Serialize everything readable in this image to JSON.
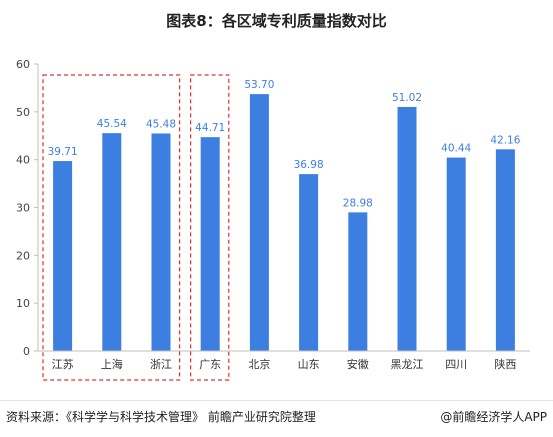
{
  "chart_data": {
    "type": "bar",
    "title": "图表8：各区域专利质量指数对比",
    "categories": [
      "江苏",
      "上海",
      "浙江",
      "广东",
      "北京",
      "山东",
      "安徽",
      "黑龙江",
      "四川",
      "陕西"
    ],
    "values": [
      39.71,
      45.54,
      45.48,
      44.71,
      53.7,
      36.98,
      28.98,
      51.02,
      40.44,
      42.16
    ],
    "value_labels": [
      "39.71",
      "45.54",
      "45.48",
      "44.71",
      "53.70",
      "36.98",
      "28.98",
      "51.02",
      "40.44",
      "42.16"
    ],
    "xlabel": "",
    "ylabel": "",
    "ylim": [
      0,
      60
    ],
    "yticks": [
      "0",
      "10",
      "20",
      "30",
      "40",
      "50",
      "60"
    ],
    "bar_color": "#3d7fe0",
    "label_color": "#3d7fe0",
    "highlight_groups": [
      {
        "categories": [
          "江苏",
          "上海",
          "浙江"
        ],
        "style": "red-dashed-box"
      },
      {
        "categories": [
          "广东"
        ],
        "style": "red-dashed-box"
      }
    ],
    "grid": false,
    "legend": "none"
  },
  "footer": {
    "source": "资料来源：《科学学与科学技术管理》 前瞻产业研究院整理",
    "brand": "@前瞻经济学人APP"
  }
}
